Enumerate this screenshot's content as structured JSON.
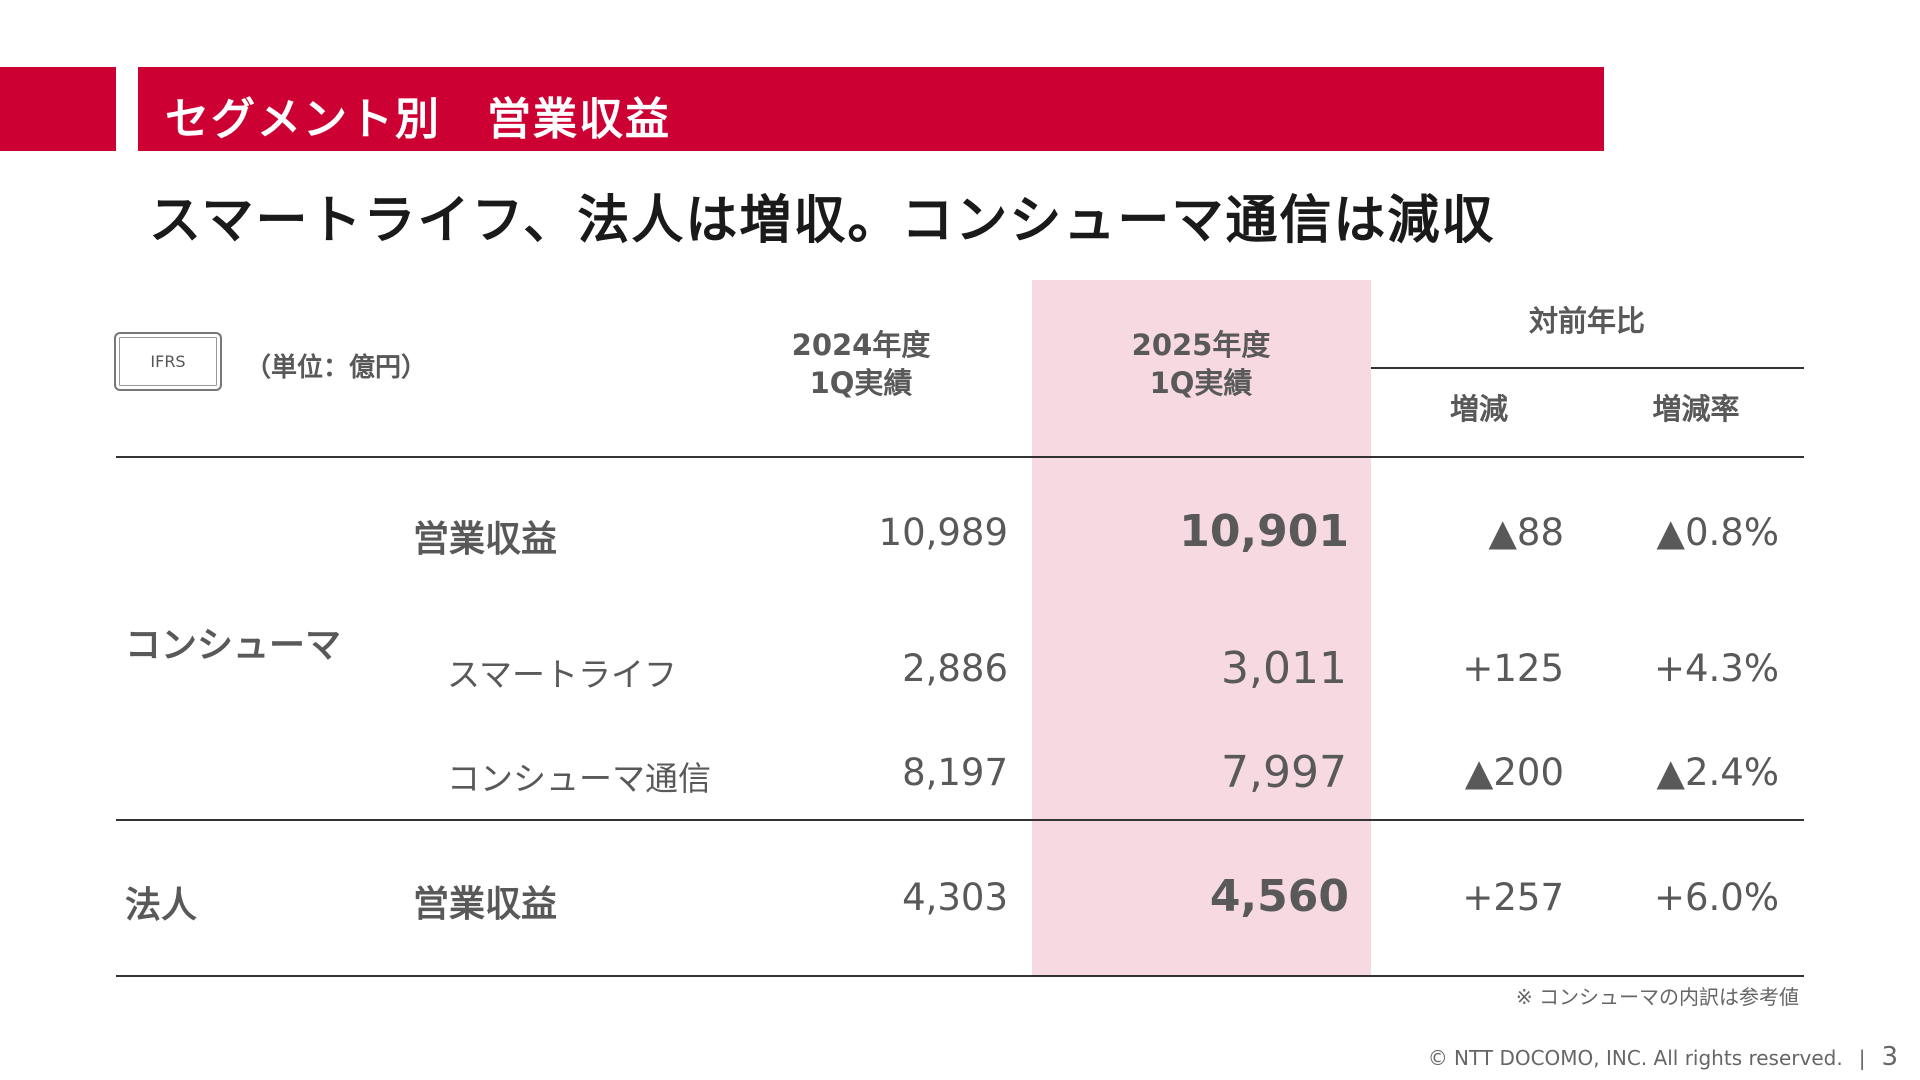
{
  "header": {
    "title": "セグメント別　営業収益",
    "subtitle": "スマートライフ、法人は増収。コンシューマ通信は減収"
  },
  "table": {
    "standard_badge": "IFRS",
    "unit": "（単位：億円）",
    "col_2024": [
      "2024年度",
      "1Q実績"
    ],
    "col_2025": [
      "2025年度",
      "1Q実績"
    ],
    "yoy": "対前年比",
    "change": "増減",
    "change_rate": "増減率",
    "segments": [
      {
        "segment": "コンシューマ",
        "rows": [
          {
            "label": "営業収益",
            "fy2024": "10,989",
            "fy2025": "10,901",
            "change": "▲88",
            "rate": "▲0.8%"
          },
          {
            "label": "スマートライフ",
            "fy2024": "2,886",
            "fy2025": "3,011",
            "change": "+125",
            "rate": "+4.3%"
          },
          {
            "label": "コンシューマ通信",
            "fy2024": "8,197",
            "fy2025": "7,997",
            "change": "▲200",
            "rate": "▲2.4%"
          }
        ]
      },
      {
        "segment": "法人",
        "rows": [
          {
            "label": "営業収益",
            "fy2024": "4,303",
            "fy2025": "4,560",
            "change": "+257",
            "rate": "+6.0%"
          }
        ]
      }
    ],
    "note": "※ コンシューマの内訳は参考値"
  },
  "footer": {
    "copyright": "© NTT DOCOMO, INC.  All rights reserved.",
    "separator": "|",
    "page": "3"
  },
  "colors": {
    "brand": "#cc0033",
    "highlight": "#f6d9e1"
  }
}
